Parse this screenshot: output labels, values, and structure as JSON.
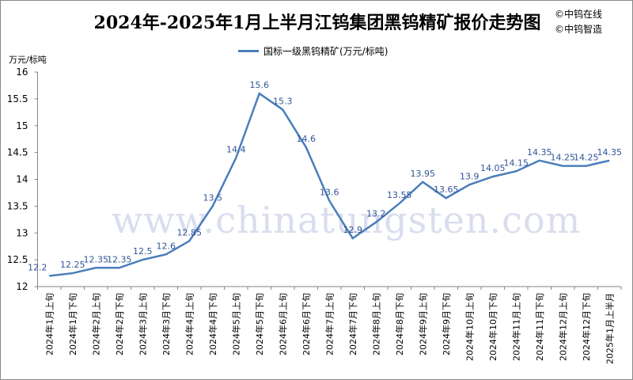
{
  "title": "2024年-2025年1月上半月江钨集团黑钨精矿报价走势图",
  "brands": [
    "©中钨在线",
    "©中钨智造"
  ],
  "watermark": "www.chinatungsten.com",
  "chart_data": {
    "type": "line",
    "title": "2024年-2025年1月上半月江钨集团黑钨精矿报价走势图",
    "ylabel": "万元/标吨",
    "xlabel": "",
    "ylim": [
      12,
      16
    ],
    "yticks": [
      12,
      12.5,
      13,
      13.5,
      14,
      14.5,
      15,
      15.5,
      16
    ],
    "grid": false,
    "legend_position": "top-center",
    "line_color": "#4a7ebb",
    "categories": [
      "2024年1月上旬",
      "2024年1月下旬",
      "2024年2月上旬",
      "2024年2月下旬",
      "2024年3月上旬",
      "2024年3月下旬",
      "2024年4月上旬",
      "2024年4月下旬",
      "2024年5月上旬",
      "2024年5月下旬",
      "2024年6月上旬",
      "2024年6月下旬",
      "2024年7月上旬",
      "2024年7月下旬",
      "2024年8月上旬",
      "2024年8月下旬",
      "2024年9月上旬",
      "2024年9月下旬",
      "2024年10月上旬",
      "2024年10月下旬",
      "2024年11月上旬",
      "2024年11月下旬",
      "2024年12月上旬",
      "2024年12月下旬",
      "2025年1月上半月"
    ],
    "series": [
      {
        "name": "国标一级黑钨精矿(万元/标吨)",
        "values": [
          12.2,
          12.25,
          12.35,
          12.35,
          12.5,
          12.6,
          12.85,
          13.5,
          14.4,
          15.6,
          15.3,
          14.6,
          13.6,
          12.9,
          13.2,
          13.55,
          13.95,
          13.65,
          13.9,
          14.05,
          14.15,
          14.35,
          14.25,
          14.25,
          14.35
        ]
      }
    ]
  }
}
